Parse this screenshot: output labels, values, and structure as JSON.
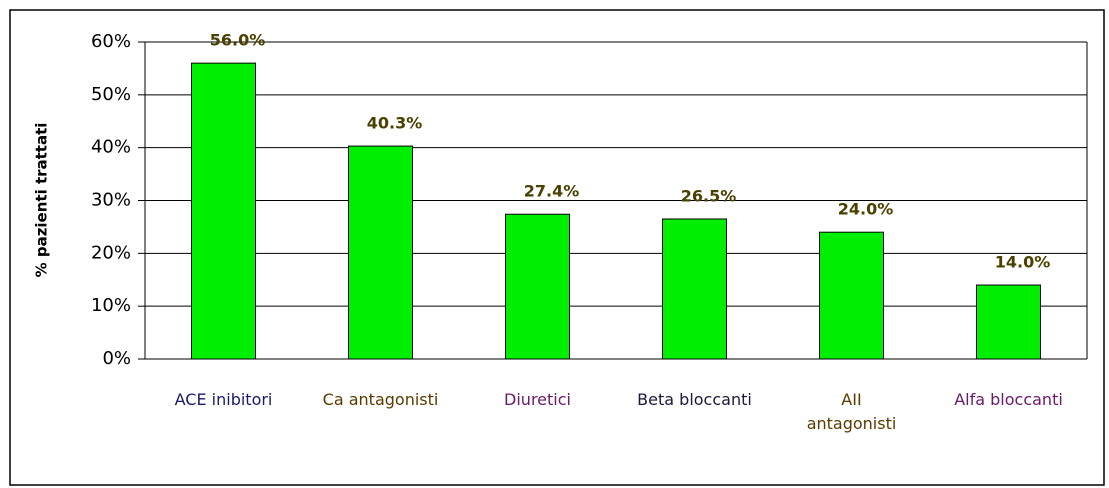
{
  "chart_data": {
    "type": "bar",
    "y_axis_label": "% pazienti trattati",
    "categories": [
      "ACE inibitori",
      "Ca antagonisti",
      "Diuretici",
      "Beta bloccanti",
      "AII antagonisti",
      "Alfa bloccanti"
    ],
    "category_label_colors": [
      "#1a1a6e",
      "#5a3a00",
      "#6a1a6a",
      "#1a1a3a",
      "#5a3a00",
      "#6a1a6a"
    ],
    "values": [
      56.0,
      40.3,
      27.4,
      26.5,
      24.0,
      14.0
    ],
    "value_labels": [
      "56.0%",
      "40.3%",
      "27.4%",
      "26.5%",
      "24.0%",
      "14.0%"
    ],
    "color": "#00ee00",
    "ylim": [
      0,
      60
    ],
    "yticks": [
      {
        "value": 0,
        "label": "0%"
      },
      {
        "value": 10,
        "label": "10%"
      },
      {
        "value": 20,
        "label": "20%"
      },
      {
        "value": 30,
        "label": "30%"
      },
      {
        "value": 40,
        "label": "40%"
      },
      {
        "value": 50,
        "label": "50%"
      },
      {
        "value": 60,
        "label": "60%"
      }
    ],
    "grid": true
  }
}
